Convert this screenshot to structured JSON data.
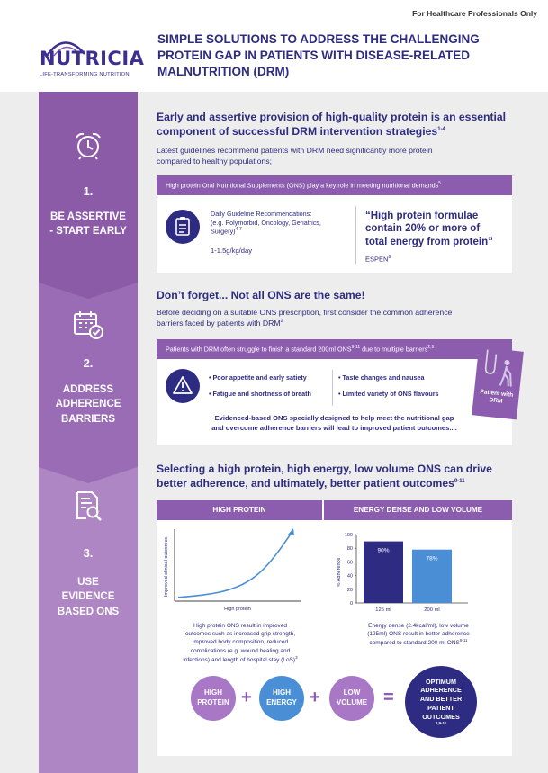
{
  "header": {
    "audience_note": "For Healthcare Professionals Only",
    "logo_word": "NUTRICIA",
    "logo_tagline": "LIFE-TRANSFORMING NUTRITION",
    "title_line1": "SIMPLE SOLUTIONS TO ADDRESS THE CHALLENGING",
    "title_line2": "PROTEIN GAP IN PATIENTS WITH DISEASE-RELATED",
    "title_line3": "MALNUTRITION (DRM)"
  },
  "sidebar": {
    "step1": {
      "number": "1.",
      "label_line1": "BE ASSERTIVE",
      "label_line2": "- START EARLY",
      "icon": "alarm-clock-icon"
    },
    "step2": {
      "number": "2.",
      "label_line1": "ADDRESS",
      "label_line2": "ADHERENCE",
      "label_line3": "BARRIERS",
      "icon": "calendar-check-icon"
    },
    "step3": {
      "number": "3.",
      "label_line1": "USE",
      "label_line2": "EVIDENCE",
      "label_line3": "BASED ONS",
      "icon": "document-search-icon"
    },
    "colors": {
      "step1": "#8b5ba8",
      "step2": "#9a6cb5",
      "step3": "#ae86c4"
    }
  },
  "section1": {
    "heading_line1": "Early and assertive provision of high-quality protein is an essential",
    "heading_line2": "component of successful DRM intervention strategies",
    "heading_sup": "1-4",
    "body_line1": "Latest guidelines recommend patients with DRM need significantly more protein",
    "body_line2": "compared to healthy populations;",
    "card_band": "High protein Oral Nutritional Supplements (ONS) play a key role in meeting nutritional demands",
    "card_band_sup": "5",
    "guideline_title": "Daily Guideline Recommendations:",
    "guideline_line2": "(e.g. Polymorbid, Oncology, Geriatrics,",
    "guideline_line3": "Surgery)",
    "guideline_sup": "4-7",
    "guideline_value": "1-1.5g/kg/day",
    "quote_line1": "“High protein formulae",
    "quote_line2": "contain 20% or more of",
    "quote_line3": "total energy from protein”",
    "quote_source": "ESPEN",
    "quote_source_sup": "8"
  },
  "section2": {
    "heading": "Don’t forget... Not all ONS are the same!",
    "body_line1": "Before deciding on a suitable ONS prescription, first consider the common adherence",
    "body_line2": "barriers faced by patients with DRM",
    "body_sup": "2",
    "card_band": "Patients with DRM often struggle to finish a standard 200ml ONS",
    "card_band_sup1": "9-11",
    "card_band_tail": " due to multiple barriers",
    "card_band_sup2": "2,9",
    "barriers": [
      "Poor appetite and early satiety",
      "Fatigue and shortness of breath",
      "Taste changes and nausea",
      "Limited variety of ONS flavours"
    ],
    "evidence_line1": "Evidenced-based ONS specially designed to help meet the nutritional gap",
    "evidence_line2": "and overcome adherence barriers will lead to improved patient outcomes....",
    "badge_line1": "Patient with",
    "badge_line2": "DRM"
  },
  "section3": {
    "heading_line1": "Selecting a high protein, high energy, low volume ONS can drive",
    "heading_line2": "better adherence, and ultimately, better patient outcomes",
    "heading_sup": "9-11",
    "col1_head": "HIGH PROTEIN",
    "col2_head": "ENERGY DENSE AND LOW VOLUME",
    "col1_caption": [
      "High protein ONS result in improved",
      "outcomes such as increased grip strength,",
      "improved body composition, reduced",
      "complications (e.g. wound healing and",
      "infections) and length of hospital stay (LoS)"
    ],
    "col1_caption_sup": "3",
    "col2_caption": [
      "Energy dense (2.4kcal/ml), low volume",
      "(125ml) ONS result in better adherence",
      "compared to standard 200 ml ONS"
    ],
    "col2_caption_sup": "9-11",
    "equation": {
      "b1_line1": "HIGH",
      "b1_line2": "PROTEIN",
      "b2_line1": "HIGH",
      "b2_line2": "ENERGY",
      "b3_line1": "LOW",
      "b3_line2": "VOLUME",
      "plus": "+",
      "equals": "=",
      "r_line1": "OPTIMUM",
      "r_line2": "ADHERENCE",
      "r_line3": "AND BETTER",
      "r_line4": "PATIENT",
      "r_line5": "OUTCOMES",
      "r_sup": "2,9-11"
    }
  },
  "chart_data": [
    {
      "type": "line",
      "xlabel": "High protein",
      "ylabel": "Improved clinical outcomes",
      "series": [
        {
          "values": [
            0.03,
            0.05,
            0.08,
            0.13,
            0.22,
            0.38,
            0.65,
            1.0
          ]
        }
      ]
    },
    {
      "type": "bar",
      "categories": [
        "125 ml",
        "200 ml"
      ],
      "values": [
        90,
        78
      ],
      "data_labels": [
        "90%",
        "78%"
      ],
      "ylabel": "% Adherence",
      "ylim": [
        0,
        100
      ],
      "yticks": [
        0,
        20,
        40,
        60,
        80,
        100
      ],
      "colors": [
        "#2e2c82",
        "#4a8fd6"
      ]
    }
  ]
}
